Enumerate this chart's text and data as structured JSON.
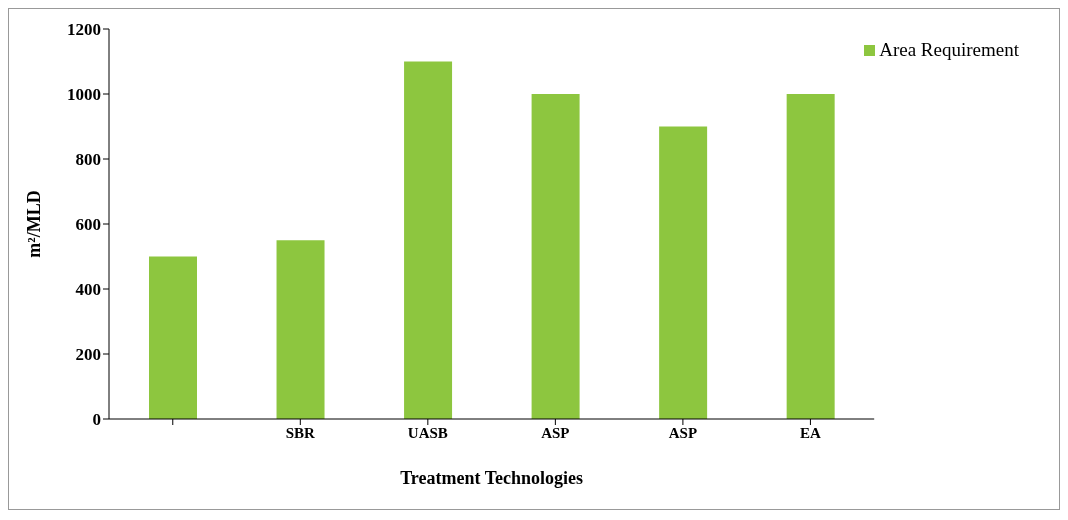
{
  "chart_data": {
    "type": "bar",
    "xlabel": "Treatment Technologies",
    "ylabel": "m²/MLD",
    "categories": [
      null,
      "SBR",
      "UASB",
      "ASP",
      "ASP",
      "EA"
    ],
    "series": [
      {
        "name": "Area Requirement",
        "color": "#8dc63f",
        "values": [
          500,
          550,
          1100,
          1000,
          900,
          1000
        ]
      }
    ],
    "ylim": [
      0,
      1200
    ],
    "yticks": [
      0,
      200,
      400,
      600,
      800,
      1000,
      1200
    ],
    "legend": "top right"
  }
}
